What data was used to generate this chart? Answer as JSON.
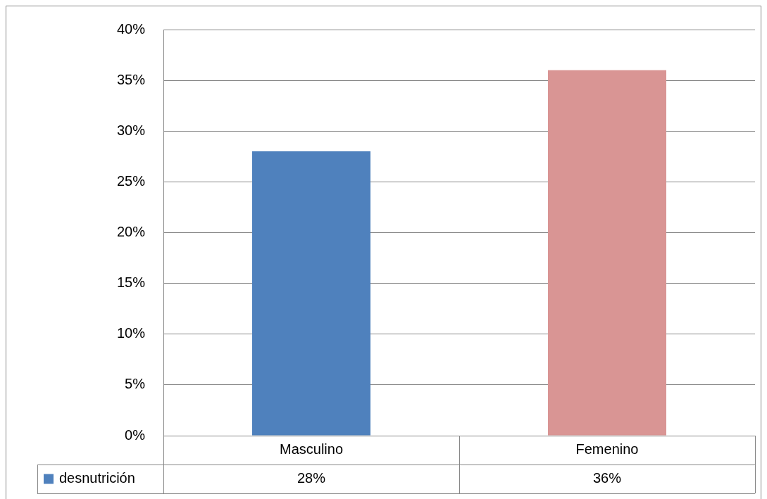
{
  "chart_data": {
    "type": "bar",
    "categories": [
      "Masculino",
      "Femenino"
    ],
    "series": [
      {
        "name": "desnutrición",
        "colors": [
          "#4f81bd",
          "#d99594"
        ],
        "values": [
          28,
          36
        ],
        "value_labels": [
          "28%",
          "36%"
        ]
      }
    ],
    "ylim": [
      0,
      40
    ],
    "yticks": [
      {
        "value": 0,
        "label": "0%"
      },
      {
        "value": 5,
        "label": "5%"
      },
      {
        "value": 10,
        "label": "10%"
      },
      {
        "value": 15,
        "label": "15%"
      },
      {
        "value": 20,
        "label": "20%"
      },
      {
        "value": 25,
        "label": "25%"
      },
      {
        "value": 30,
        "label": "30%"
      },
      {
        "value": 35,
        "label": "35%"
      },
      {
        "value": 40,
        "label": "40%"
      }
    ],
    "grid": "y",
    "legend": "bottom"
  }
}
